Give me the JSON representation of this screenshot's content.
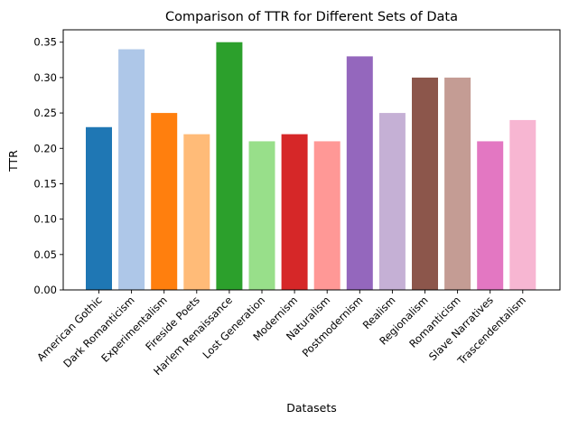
{
  "chart_data": {
    "type": "bar",
    "title": "Comparison of TTR for Different Sets of Data",
    "xlabel": "Datasets",
    "ylabel": "TTR",
    "ylim": [
      0,
      0.3675
    ],
    "yticks": [
      0.0,
      0.05,
      0.1,
      0.15,
      0.2,
      0.25,
      0.3,
      0.35
    ],
    "ytick_labels": [
      "0.00",
      "0.05",
      "0.10",
      "0.15",
      "0.20",
      "0.25",
      "0.30",
      "0.35"
    ],
    "grid": false,
    "categories": [
      "American Gothic",
      "Dark Romanticism",
      "Experimentalism",
      "Fireside Poets",
      "Harlem Renaissance",
      "Lost Generation",
      "Modernism",
      "Naturalism",
      "Postmodernism",
      "Realism",
      "Regionalism",
      "Romanticism",
      "Slave Narratives",
      "Trascendentalism"
    ],
    "values": [
      0.23,
      0.34,
      0.25,
      0.22,
      0.35,
      0.21,
      0.22,
      0.21,
      0.33,
      0.25,
      0.3,
      0.3,
      0.21,
      0.24
    ],
    "colors": [
      "#1f77b4",
      "#aec7e8",
      "#ff7f0e",
      "#ffbb78",
      "#2ca02c",
      "#98df8a",
      "#d62728",
      "#ff9896",
      "#9467bd",
      "#c5b0d5",
      "#8c564b",
      "#c49c94",
      "#e377c2",
      "#f7b6d2"
    ]
  }
}
